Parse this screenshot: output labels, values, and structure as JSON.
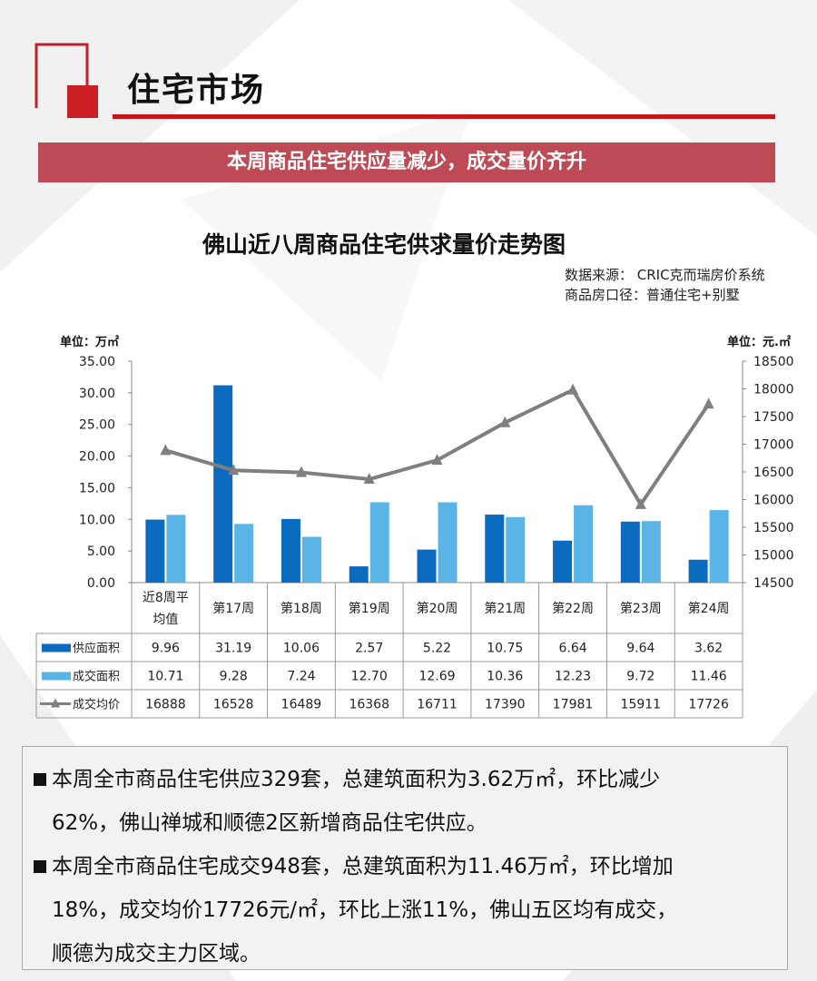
{
  "header": {
    "title": "住宅市场",
    "banner": "本周商品住宅供应量减少，成交量价齐升"
  },
  "chart_title": "佛山近八周商品住宅供求量价走势图",
  "source_lines": [
    "数据来源：  CRIC克而瑞房价系统",
    "商品房口径：普通住宅+别墅"
  ],
  "units": {
    "left": "单位：万㎡",
    "right": "单位：元.㎡"
  },
  "chart_data": {
    "type": "bar",
    "categories": [
      "近8周平均值",
      "第17周",
      "第18周",
      "第19周",
      "第20周",
      "第21周",
      "第22周",
      "第23周",
      "第24周"
    ],
    "category_display": [
      [
        "近8周平",
        "均值"
      ],
      [
        "第17周"
      ],
      [
        "第18周"
      ],
      [
        "第19周"
      ],
      [
        "第20周"
      ],
      [
        "第21周"
      ],
      [
        "第22周"
      ],
      [
        "第23周"
      ],
      [
        "第24周"
      ]
    ],
    "series": [
      {
        "name": "供应面积",
        "type": "bar",
        "axis": "left",
        "color": "#0b6bbf",
        "values": [
          9.96,
          31.19,
          10.06,
          2.57,
          5.22,
          10.75,
          6.64,
          9.64,
          3.62
        ],
        "labels": [
          "9.96",
          "31.19",
          "10.06",
          "2.57",
          "5.22",
          "10.75",
          "6.64",
          "9.64",
          "3.62"
        ]
      },
      {
        "name": "成交面积",
        "type": "bar",
        "axis": "left",
        "color": "#5ab4e5",
        "values": [
          10.71,
          9.28,
          7.24,
          12.7,
          12.69,
          10.36,
          12.23,
          9.72,
          11.46
        ],
        "labels": [
          "10.71",
          "9.28",
          "7.24",
          "12.70",
          "12.69",
          "10.36",
          "12.23",
          "9.72",
          "11.46"
        ]
      },
      {
        "name": "成交均价",
        "type": "line",
        "axis": "right",
        "color": "#7f7f7f",
        "values": [
          16888,
          16528,
          16489,
          16368,
          16711,
          17390,
          17981,
          15911,
          17726
        ],
        "labels": [
          "16888",
          "16528",
          "16489",
          "16368",
          "16711",
          "17390",
          "17981",
          "15911",
          "17726"
        ]
      }
    ],
    "y_left": {
      "min": 0,
      "max": 35,
      "ticks": [
        "0.00",
        "5.00",
        "10.00",
        "15.00",
        "20.00",
        "25.00",
        "30.00",
        "35.00"
      ]
    },
    "y_right": {
      "min": 14500,
      "max": 18500,
      "ticks": [
        "14500",
        "15000",
        "15500",
        "16000",
        "16500",
        "17000",
        "17500",
        "18000",
        "18500"
      ]
    },
    "grid": false,
    "legend": "data-table"
  },
  "summary": [
    {
      "lines": [
        "本周全市商品住宅供应329套，总建筑面积为3.62万㎡，环比减少",
        "62%，佛山禅城和顺德2区新增商品住宅供应。"
      ]
    },
    {
      "lines": [
        "本周全市商品住宅成交948套，总建筑面积为11.46万㎡，环比增加",
        "18%，成交均价17726元/㎡，环比上涨11%，佛山五区均有成交，",
        "顺德为成交主力区域。"
      ]
    }
  ]
}
